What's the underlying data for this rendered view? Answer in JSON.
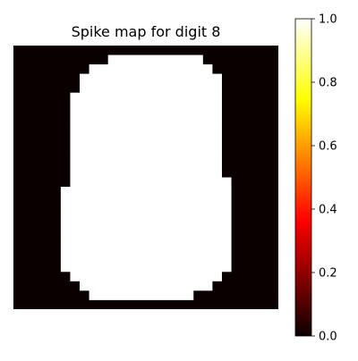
{
  "chart_data": {
    "type": "heatmap",
    "title": "Spike map for digit 8",
    "grid_size": [
      28,
      28
    ],
    "value_range": [
      0,
      1
    ],
    "colormap": "hot",
    "colorbar": {
      "ticks": [
        0.0,
        0.2,
        0.4,
        0.6,
        0.8,
        1.0
      ],
      "tick_labels": [
        "0.0",
        "0.2",
        "0.4",
        "0.6",
        "0.8",
        "1.0"
      ]
    },
    "axes_visible": false,
    "active_rows": [
      {
        "row": 1,
        "from": 10,
        "to": 20
      },
      {
        "row": 2,
        "from": 8,
        "to": 21
      },
      {
        "row": 3,
        "from": 7,
        "to": 22
      },
      {
        "row": 4,
        "from": 7,
        "to": 22
      },
      {
        "row": 5,
        "from": 6,
        "to": 22
      },
      {
        "row": 6,
        "from": 6,
        "to": 22
      },
      {
        "row": 7,
        "from": 6,
        "to": 22
      },
      {
        "row": 8,
        "from": 6,
        "to": 22
      },
      {
        "row": 9,
        "from": 6,
        "to": 22
      },
      {
        "row": 10,
        "from": 6,
        "to": 22
      },
      {
        "row": 11,
        "from": 6,
        "to": 22
      },
      {
        "row": 12,
        "from": 6,
        "to": 22
      },
      {
        "row": 13,
        "from": 6,
        "to": 22
      },
      {
        "row": 14,
        "from": 6,
        "to": 23
      },
      {
        "row": 15,
        "from": 5,
        "to": 23
      },
      {
        "row": 16,
        "from": 5,
        "to": 23
      },
      {
        "row": 17,
        "from": 5,
        "to": 23
      },
      {
        "row": 18,
        "from": 5,
        "to": 23
      },
      {
        "row": 19,
        "from": 5,
        "to": 23
      },
      {
        "row": 20,
        "from": 5,
        "to": 23
      },
      {
        "row": 21,
        "from": 5,
        "to": 23
      },
      {
        "row": 22,
        "from": 5,
        "to": 23
      },
      {
        "row": 23,
        "from": 5,
        "to": 23
      },
      {
        "row": 24,
        "from": 6,
        "to": 22
      },
      {
        "row": 25,
        "from": 7,
        "to": 21
      },
      {
        "row": 26,
        "from": 8,
        "to": 19
      }
    ],
    "active_value": 1.0,
    "inactive_value": 0.0
  }
}
